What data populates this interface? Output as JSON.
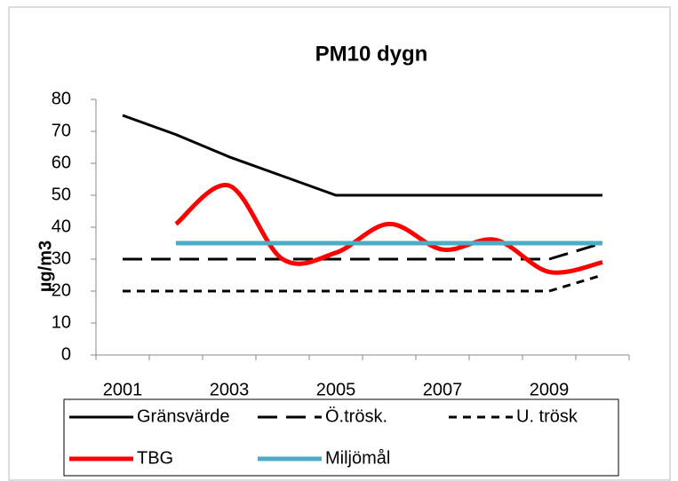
{
  "chart_data": {
    "type": "line",
    "title": "PM10 dygn",
    "y_label": "µg/m3",
    "categories": [
      "2001",
      null,
      "2003",
      null,
      "2005",
      null,
      "2007",
      null,
      "2009",
      null
    ],
    "ylim": [
      0,
      80
    ],
    "yticks": [
      0,
      10,
      20,
      30,
      40,
      50,
      60,
      70,
      80
    ],
    "grid": false,
    "legend": "bottom",
    "series": [
      {
        "name": "Gränsvärde",
        "color": "#000000",
        "dash": "solid",
        "smooth": false,
        "values": [
          75,
          69,
          62,
          56,
          50,
          50,
          50,
          50,
          50,
          50
        ]
      },
      {
        "name": "Ö.trösk.",
        "color": "#000000",
        "dash": "long",
        "smooth": false,
        "values": [
          30,
          30,
          30,
          30,
          30,
          30,
          30,
          30,
          30,
          35
        ]
      },
      {
        "name": "U. trösk",
        "color": "#000000",
        "dash": "short",
        "smooth": false,
        "values": [
          20,
          20,
          20,
          20,
          20,
          20,
          20,
          20,
          20,
          25
        ]
      },
      {
        "name": "TBG",
        "color": "#ff0000",
        "dash": "solid",
        "smooth": true,
        "values": [
          null,
          41,
          53,
          30,
          32,
          41,
          33,
          36,
          26,
          29
        ]
      },
      {
        "name": "Miljömål",
        "color": "#4bacc6",
        "dash": "solid",
        "smooth": false,
        "values": [
          null,
          35,
          35,
          35,
          35,
          35,
          35,
          35,
          35,
          35
        ]
      }
    ]
  }
}
